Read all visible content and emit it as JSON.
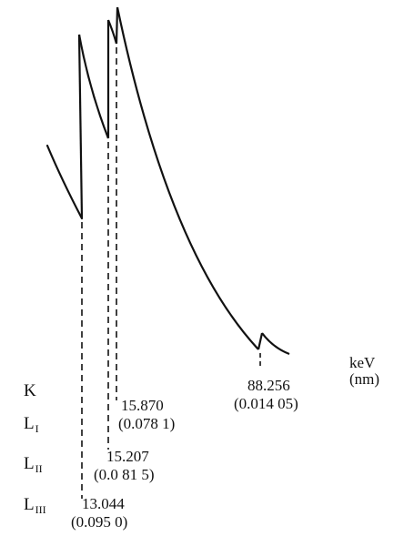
{
  "chart_data": {
    "type": "line",
    "title": "",
    "xlabel": "",
    "ylabel": "",
    "units": {
      "energy": "keV",
      "wavelength": "(nm)"
    },
    "edges": [
      {
        "shell": "K",
        "sub": "",
        "energy": "88.256",
        "wavelength": "(0.014 05)"
      },
      {
        "shell": "L",
        "sub": "I",
        "energy": "15.870",
        "wavelength": "(0.078 1)"
      },
      {
        "shell": "L",
        "sub": "II",
        "energy": "15.207",
        "wavelength": "(0.0 81 5)"
      },
      {
        "shell": "L",
        "sub": "III",
        "energy": "13.044",
        "wavelength": "(0.095 0)"
      }
    ]
  }
}
